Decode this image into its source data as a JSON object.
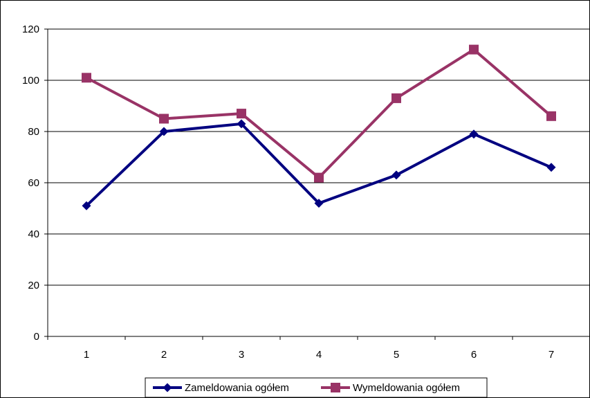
{
  "chart_data": {
    "type": "line",
    "x": [
      1,
      2,
      3,
      4,
      5,
      6,
      7
    ],
    "ylim": [
      0,
      120
    ],
    "yticks": [
      0,
      20,
      40,
      60,
      80,
      100,
      120
    ],
    "grid": true,
    "legend_position": "bottom",
    "series": [
      {
        "name": "Zameldowania ogółem",
        "values": [
          51,
          80,
          83,
          52,
          63,
          79,
          66
        ],
        "color": "#000080",
        "marker": "diamond"
      },
      {
        "name": "Wymeldowania ogółem",
        "values": [
          101,
          85,
          87,
          62,
          93,
          112,
          86
        ],
        "color": "#993366",
        "marker": "square"
      }
    ]
  }
}
